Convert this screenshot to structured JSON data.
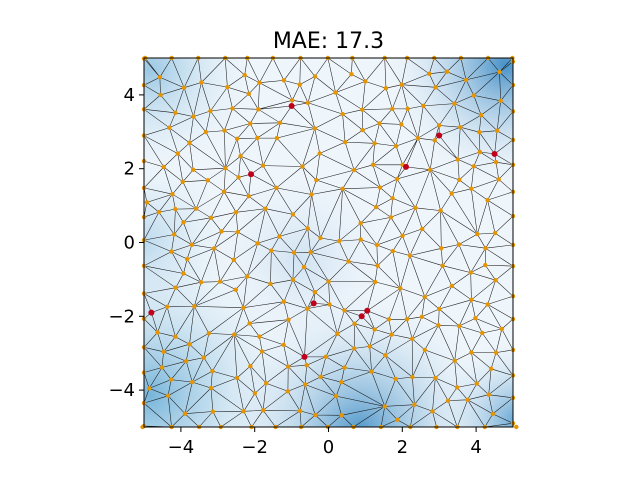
{
  "chart_data": {
    "type": "scatter",
    "title": "MAE: 17.3",
    "xlabel": "",
    "ylabel": "",
    "xlim": [
      -5,
      5
    ],
    "ylim": [
      -5,
      5
    ],
    "xticks": [
      -4,
      -2,
      0,
      2,
      4
    ],
    "yticks": [
      -4,
      -2,
      0,
      2,
      4
    ],
    "xtick_labels": [
      "−4",
      "−2",
      "0",
      "2",
      "4"
    ],
    "ytick_labels": [
      "−4",
      "−2",
      "0",
      "2",
      "4"
    ],
    "grid": false,
    "background": "blue gradient (Blues colormap) overlaid with triangulation mesh",
    "highlighted_points": {
      "color": "#c0001a",
      "x": [
        -1.0,
        -2.1,
        2.1,
        3.0,
        4.5,
        -0.4,
        0.9,
        1.05,
        -0.65,
        -4.8
      ],
      "y": [
        3.7,
        1.85,
        2.05,
        2.9,
        2.4,
        -1.65,
        -2.0,
        -1.85,
        -3.1,
        -1.9
      ]
    },
    "mesh_points": {
      "color": "#e69500",
      "count": 300,
      "description": "dense orange sample points on the triangulation vertices"
    },
    "colors": {
      "highlight": "#c0001a",
      "mesh_point": "#e69500",
      "edge": "#1a1a1a",
      "field_dark": "#5fa2cf",
      "field_light": "#f7fbff"
    }
  }
}
